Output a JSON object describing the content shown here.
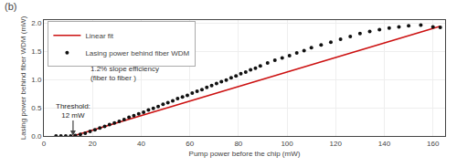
{
  "chart_data": {
    "type": "scatter",
    "title": "(b)",
    "x_label": "Pump power before the chip (mW)",
    "y_label": "Lasing power behind fiber WDM (mW)",
    "series": [
      {
        "name": "Linear fit",
        "type": "line",
        "color": "#cc1111",
        "x": [
          12,
          163
        ],
        "values": [
          0.0,
          1.94
        ]
      },
      {
        "name": "Lasing power behind fiber WDM",
        "type": "scatter",
        "color": "#111111",
        "marker": "circle",
        "x": [
          5,
          7,
          9,
          11,
          13,
          15,
          17,
          19,
          21,
          23,
          25,
          27,
          29,
          31,
          33,
          35,
          37,
          39,
          41,
          43,
          45,
          47,
          49,
          51,
          53,
          55,
          57,
          59,
          61,
          63,
          65,
          67,
          69,
          71,
          73,
          75,
          77,
          79,
          81,
          83,
          85,
          87,
          89,
          92,
          95,
          98,
          101,
          104,
          107,
          110,
          114,
          118,
          122,
          126,
          130,
          134,
          138,
          142,
          146,
          150,
          155,
          160,
          163
        ],
        "values": [
          0.0,
          0.0,
          0.0,
          0.0,
          0.01,
          0.03,
          0.05,
          0.08,
          0.11,
          0.14,
          0.17,
          0.2,
          0.23,
          0.26,
          0.29,
          0.33,
          0.36,
          0.39,
          0.42,
          0.46,
          0.49,
          0.52,
          0.56,
          0.59,
          0.62,
          0.66,
          0.69,
          0.72,
          0.76,
          0.79,
          0.82,
          0.86,
          0.89,
          0.93,
          0.96,
          0.99,
          1.03,
          1.06,
          1.1,
          1.13,
          1.17,
          1.2,
          1.24,
          1.29,
          1.34,
          1.38,
          1.42,
          1.47,
          1.51,
          1.56,
          1.61,
          1.66,
          1.71,
          1.76,
          1.81,
          1.85,
          1.88,
          1.91,
          1.93,
          1.95,
          1.96,
          1.93,
          1.92
        ]
      }
    ],
    "xlim": [
      0,
      165
    ],
    "ylim": [
      0,
      2.05
    ],
    "xticks": [
      0,
      20,
      40,
      60,
      80,
      100,
      120,
      140,
      160
    ],
    "yticks": [
      {
        "value": 0.0,
        "label": "0.0"
      },
      0.5,
      {
        "value": 1.0,
        "label": "1.0"
      },
      1.5,
      {
        "value": 2.0,
        "label": "2.0"
      }
    ],
    "grid": true,
    "legend": "upper left",
    "annotations": [
      {
        "text": "Threshold:\n12 mW",
        "x": 12
      },
      {
        "text": "1.2% slope efficiency\n(fiber to fiber )",
        "x": 48,
        "y": 0.92
      }
    ]
  }
}
